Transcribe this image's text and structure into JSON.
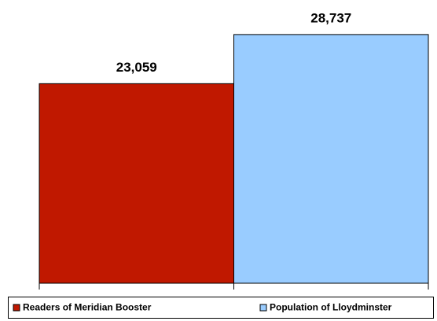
{
  "chart_data": {
    "type": "bar",
    "categories": [
      null
    ],
    "series": [
      {
        "name": "Readers of Meridian Booster",
        "color": "#c01800",
        "values": [
          23059
        ],
        "value_labels": [
          "23,059"
        ]
      },
      {
        "name": "Population of Lloydminster",
        "color": "#99ccff",
        "values": [
          28737
        ],
        "value_labels": [
          "28,737"
        ]
      }
    ],
    "ylim": [
      0,
      30000
    ],
    "legend": "bottom"
  }
}
